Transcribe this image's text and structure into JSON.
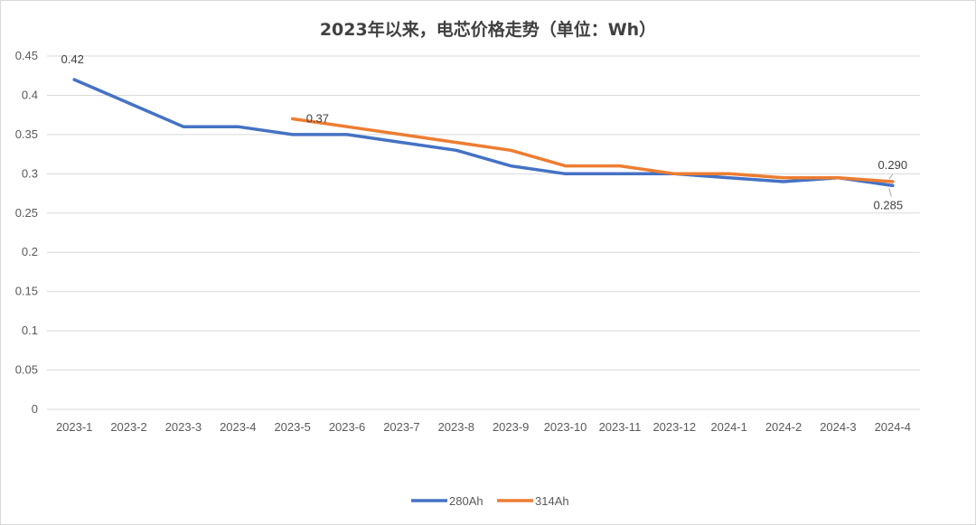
{
  "chart_data": {
    "type": "line",
    "title": "2023年以来，电芯价格走势（单位：Wh）",
    "categories": [
      "2023-1",
      "2023-2",
      "2023-3",
      "2023-4",
      "2023-5",
      "2023-6",
      "2023-7",
      "2023-8",
      "2023-9",
      "2023-10",
      "2023-11",
      "2023-12",
      "2024-1",
      "2024-2",
      "2024-3",
      "2024-4"
    ],
    "y_ticks": [
      "0",
      "0.05",
      "0.1",
      "0.15",
      "0.2",
      "0.25",
      "0.3",
      "0.35",
      "0.4",
      "0.45"
    ],
    "ylim": [
      0,
      0.45
    ],
    "grid": true,
    "legend_position": "bottom",
    "series": [
      {
        "name": "280Ah",
        "color": "#4472c4",
        "values": [
          0.42,
          0.39,
          0.36,
          0.36,
          0.35,
          0.35,
          0.34,
          0.33,
          0.31,
          0.3,
          0.3,
          0.3,
          0.295,
          0.29,
          0.295,
          0.285
        ]
      },
      {
        "name": "314Ah",
        "color": "#ed7d31",
        "values": [
          null,
          null,
          null,
          null,
          0.37,
          0.36,
          0.35,
          0.34,
          0.33,
          0.31,
          0.31,
          0.3,
          0.3,
          0.295,
          0.295,
          0.29
        ]
      }
    ],
    "data_labels": [
      {
        "series": 0,
        "index": 0,
        "text": "0.42"
      },
      {
        "series": 1,
        "index": 4,
        "text": "0.37"
      },
      {
        "series": 1,
        "index": 15,
        "text": "0.290"
      },
      {
        "series": 0,
        "index": 15,
        "text": "0.285"
      }
    ]
  }
}
